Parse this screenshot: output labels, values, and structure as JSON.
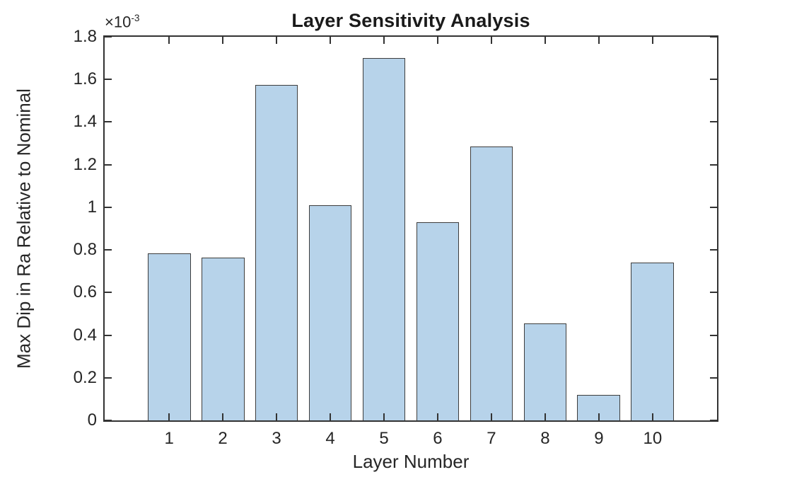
{
  "chart_data": {
    "type": "bar",
    "title": "Layer Sensitivity Analysis",
    "xlabel": "Layer Number",
    "ylabel": "Max Dip in Ra Relative to Nominal",
    "categories": [
      "1",
      "2",
      "3",
      "4",
      "5",
      "6",
      "7",
      "8",
      "9",
      "10"
    ],
    "values": [
      0.000785,
      0.000765,
      0.001575,
      0.00101,
      0.0017,
      0.00093,
      0.001285,
      0.000455,
      0.00012,
      0.00074
    ],
    "xlim": [
      -0.2,
      11.2
    ],
    "ylim": [
      0,
      0.0018
    ],
    "ytick_values": [
      0,
      0.0002,
      0.0004,
      0.0006,
      0.0008,
      0.001,
      0.0012,
      0.0014,
      0.0016,
      0.0018
    ],
    "ytick_labels": [
      "0",
      "0.2",
      "0.4",
      "0.6",
      "0.8",
      "1",
      "1.2",
      "1.4",
      "1.6",
      "1.8"
    ],
    "y_multiplier": {
      "base": "×10",
      "exp": "-3"
    },
    "bar_rel_width": 0.8,
    "grid": false,
    "legend": null,
    "colors": {
      "bar_fill": "#B7D3EA",
      "bar_edge": "#3d3d3d",
      "axis": "#333333",
      "text": "#262626",
      "title": "#1a1a1a",
      "background": "#ffffff"
    }
  }
}
